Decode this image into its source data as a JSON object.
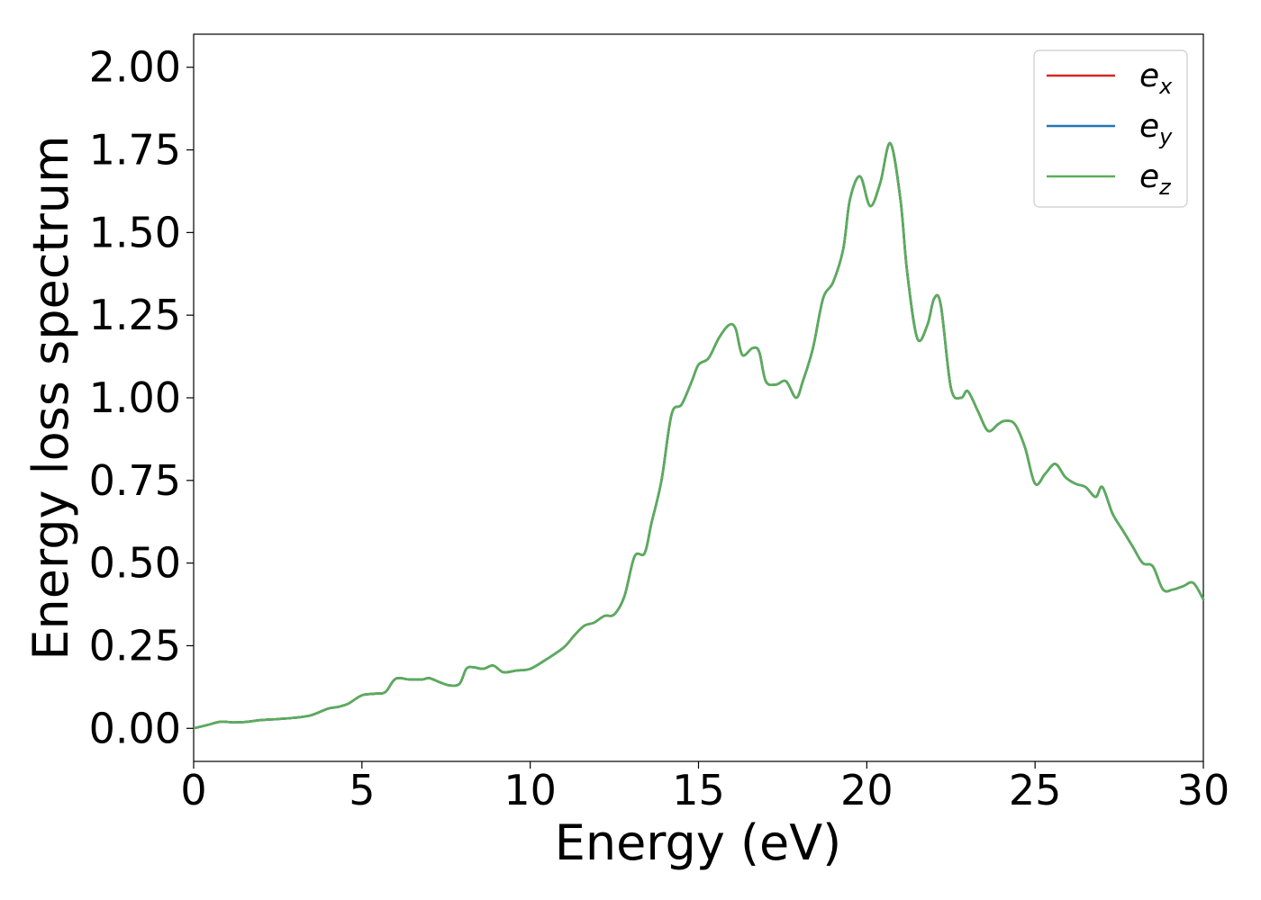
{
  "chart_data": {
    "type": "line",
    "xlabel": "Energy (eV)",
    "ylabel": "Energy loss spectrum",
    "xlim": [
      0,
      30
    ],
    "ylim": [
      -0.1,
      2.1
    ],
    "x_ticks": [
      0,
      5,
      10,
      15,
      20,
      25,
      30
    ],
    "x_tick_labels": [
      "0",
      "5",
      "10",
      "15",
      "20",
      "25",
      "30"
    ],
    "y_ticks": [
      0.0,
      0.25,
      0.5,
      0.75,
      1.0,
      1.25,
      1.5,
      1.75,
      2.0
    ],
    "y_tick_labels": [
      "0.00",
      "0.25",
      "0.50",
      "0.75",
      "1.00",
      "1.25",
      "1.50",
      "1.75",
      "2.00"
    ],
    "grid": false,
    "legend_position": "top-right",
    "x": [
      0,
      0.4,
      0.8,
      1.2,
      1.6,
      2.0,
      2.5,
      3.0,
      3.5,
      4.0,
      4.3,
      4.6,
      5.0,
      5.4,
      5.7,
      6.0,
      6.4,
      6.8,
      7.0,
      7.3,
      7.6,
      7.9,
      8.1,
      8.3,
      8.6,
      8.9,
      9.2,
      9.6,
      10.0,
      10.5,
      11.0,
      11.3,
      11.6,
      11.9,
      12.2,
      12.5,
      12.8,
      13.1,
      13.4,
      13.6,
      13.9,
      14.2,
      14.5,
      14.8,
      15.0,
      15.3,
      15.6,
      15.9,
      16.1,
      16.3,
      16.6,
      16.8,
      17.0,
      17.3,
      17.6,
      17.9,
      18.1,
      18.4,
      18.7,
      19.0,
      19.3,
      19.5,
      19.8,
      20.1,
      20.4,
      20.7,
      21.0,
      21.2,
      21.5,
      21.8,
      22.0,
      22.2,
      22.5,
      22.8,
      23.0,
      23.3,
      23.6,
      23.9,
      24.1,
      24.4,
      24.7,
      25.0,
      25.3,
      25.6,
      25.9,
      26.2,
      26.5,
      26.8,
      27.0,
      27.3,
      27.6,
      27.9,
      28.2,
      28.5,
      28.8,
      29.1,
      29.4,
      29.7,
      30.0
    ],
    "series": [
      {
        "name": "e_x",
        "color": "#d62728",
        "values": [
          0.0,
          0.01,
          0.02,
          0.018,
          0.02,
          0.025,
          0.028,
          0.032,
          0.04,
          0.06,
          0.065,
          0.075,
          0.1,
          0.105,
          0.11,
          0.15,
          0.148,
          0.148,
          0.152,
          0.14,
          0.13,
          0.135,
          0.18,
          0.185,
          0.18,
          0.19,
          0.17,
          0.175,
          0.18,
          0.21,
          0.245,
          0.28,
          0.31,
          0.32,
          0.34,
          0.345,
          0.4,
          0.52,
          0.53,
          0.62,
          0.75,
          0.95,
          0.98,
          1.05,
          1.1,
          1.12,
          1.18,
          1.22,
          1.21,
          1.13,
          1.15,
          1.14,
          1.05,
          1.04,
          1.05,
          1.0,
          1.05,
          1.15,
          1.3,
          1.35,
          1.45,
          1.6,
          1.67,
          1.58,
          1.65,
          1.77,
          1.6,
          1.38,
          1.18,
          1.22,
          1.3,
          1.28,
          1.03,
          1.0,
          1.02,
          0.96,
          0.9,
          0.92,
          0.93,
          0.92,
          0.85,
          0.74,
          0.77,
          0.8,
          0.76,
          0.74,
          0.73,
          0.7,
          0.73,
          0.65,
          0.6,
          0.55,
          0.5,
          0.49,
          0.42,
          0.42,
          0.43,
          0.44,
          0.39
        ]
      },
      {
        "name": "e_y",
        "color": "#1f77b4",
        "values": [
          0.0,
          0.01,
          0.02,
          0.018,
          0.02,
          0.025,
          0.028,
          0.032,
          0.04,
          0.06,
          0.065,
          0.075,
          0.1,
          0.105,
          0.11,
          0.15,
          0.148,
          0.148,
          0.152,
          0.14,
          0.13,
          0.135,
          0.18,
          0.185,
          0.18,
          0.19,
          0.17,
          0.175,
          0.18,
          0.21,
          0.245,
          0.28,
          0.31,
          0.32,
          0.34,
          0.345,
          0.4,
          0.52,
          0.53,
          0.62,
          0.75,
          0.95,
          0.98,
          1.05,
          1.1,
          1.12,
          1.18,
          1.22,
          1.21,
          1.13,
          1.15,
          1.14,
          1.05,
          1.04,
          1.05,
          1.0,
          1.05,
          1.15,
          1.3,
          1.35,
          1.45,
          1.6,
          1.67,
          1.58,
          1.65,
          1.77,
          1.6,
          1.38,
          1.18,
          1.22,
          1.3,
          1.28,
          1.03,
          1.0,
          1.02,
          0.96,
          0.9,
          0.92,
          0.93,
          0.92,
          0.85,
          0.74,
          0.77,
          0.8,
          0.76,
          0.74,
          0.73,
          0.7,
          0.73,
          0.65,
          0.6,
          0.55,
          0.5,
          0.49,
          0.42,
          0.42,
          0.43,
          0.44,
          0.39
        ]
      },
      {
        "name": "e_z",
        "color": "#5aad5a",
        "values": [
          0.0,
          0.01,
          0.02,
          0.018,
          0.02,
          0.025,
          0.028,
          0.032,
          0.04,
          0.06,
          0.065,
          0.075,
          0.1,
          0.105,
          0.11,
          0.15,
          0.148,
          0.148,
          0.152,
          0.14,
          0.13,
          0.135,
          0.18,
          0.185,
          0.18,
          0.19,
          0.17,
          0.175,
          0.18,
          0.21,
          0.245,
          0.28,
          0.31,
          0.32,
          0.34,
          0.345,
          0.4,
          0.52,
          0.53,
          0.62,
          0.75,
          0.95,
          0.98,
          1.05,
          1.1,
          1.12,
          1.18,
          1.22,
          1.21,
          1.13,
          1.15,
          1.14,
          1.05,
          1.04,
          1.05,
          1.0,
          1.05,
          1.15,
          1.3,
          1.35,
          1.45,
          1.6,
          1.67,
          1.58,
          1.65,
          1.77,
          1.6,
          1.38,
          1.18,
          1.22,
          1.3,
          1.28,
          1.03,
          1.0,
          1.02,
          0.96,
          0.9,
          0.92,
          0.93,
          0.92,
          0.85,
          0.74,
          0.77,
          0.8,
          0.76,
          0.74,
          0.73,
          0.7,
          0.73,
          0.65,
          0.6,
          0.55,
          0.5,
          0.49,
          0.42,
          0.42,
          0.43,
          0.44,
          0.39
        ]
      }
    ],
    "legend": [
      {
        "base": "e",
        "sub": "x",
        "color": "#d62728"
      },
      {
        "base": "e",
        "sub": "y",
        "color": "#1f77b4"
      },
      {
        "base": "e",
        "sub": "z",
        "color": "#5aad5a"
      }
    ]
  }
}
